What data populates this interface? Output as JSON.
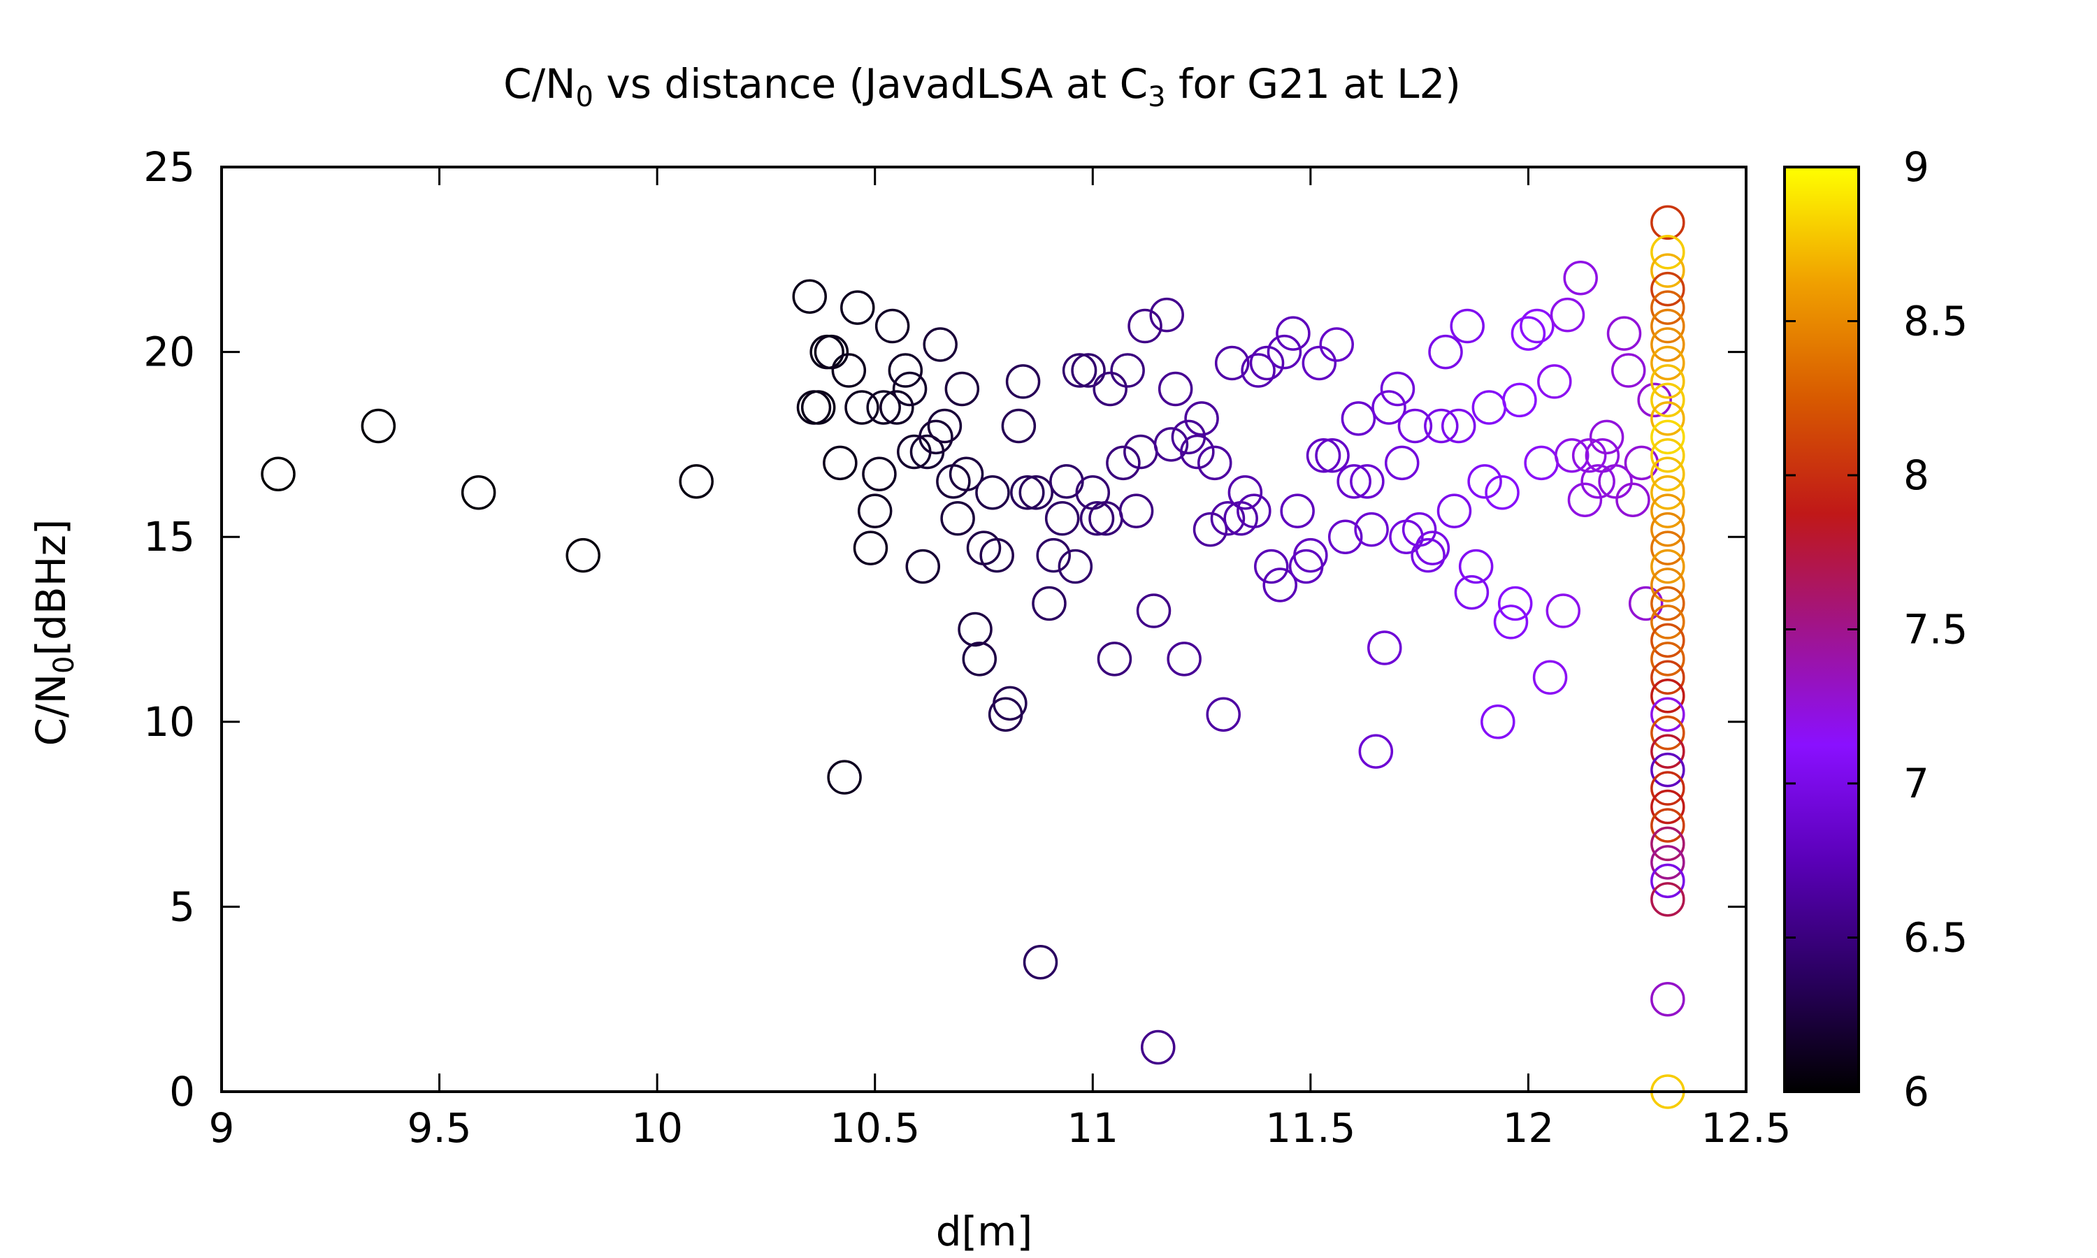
{
  "chart_data": {
    "type": "scatter",
    "title": {
      "prefix": "C/N",
      "sub1": "0",
      "middle": " vs distance (JavadLSA at C",
      "sub2": "3",
      "suffix": " for G21 at L2)"
    },
    "xlabel": "d[m]",
    "ylabel": {
      "prefix": "C/N",
      "sub": "0",
      "suffix": "[dBHz]"
    },
    "xlim": [
      9,
      12.5
    ],
    "ylim": [
      0,
      25
    ],
    "xticks": [
      9,
      9.5,
      10,
      10.5,
      11,
      11.5,
      12,
      12.5
    ],
    "xtick_labels": [
      "9",
      "9.5",
      "10",
      "10.5",
      "11",
      "11.5",
      "12",
      "12.5"
    ],
    "yticks": [
      0,
      5,
      10,
      15,
      20,
      25
    ],
    "ytick_labels": [
      "0",
      "5",
      "10",
      "15",
      "20",
      "25"
    ],
    "colorbar": {
      "range": [
        6,
        9
      ],
      "ticks": [
        6,
        6.5,
        7,
        7.5,
        8,
        8.5,
        9
      ],
      "tick_labels": [
        "6",
        "6.5",
        "7",
        "7.5",
        "8",
        "8.5",
        "9"
      ],
      "palette": [
        "#000000",
        "#2a0060",
        "#5a00b8",
        "#8a10ff",
        "#a0148c",
        "#c01818",
        "#d85a00",
        "#f0a000",
        "#ffff00"
      ]
    },
    "marker": "open-circle",
    "grid": false,
    "points": [
      [
        9.13,
        16.7,
        6.02
      ],
      [
        9.36,
        18.0,
        6.03
      ],
      [
        9.59,
        16.2,
        6.04
      ],
      [
        9.83,
        14.5,
        6.05
      ],
      [
        10.09,
        16.5,
        6.07
      ],
      [
        10.35,
        21.5,
        6.1
      ],
      [
        10.36,
        18.5,
        6.1
      ],
      [
        10.37,
        18.5,
        6.1
      ],
      [
        10.39,
        20.0,
        6.1
      ],
      [
        10.4,
        20.0,
        6.11
      ],
      [
        10.42,
        17.0,
        6.11
      ],
      [
        10.43,
        8.5,
        6.12
      ],
      [
        10.44,
        19.5,
        6.12
      ],
      [
        10.46,
        21.2,
        6.12
      ],
      [
        10.47,
        18.5,
        6.13
      ],
      [
        10.49,
        14.7,
        6.13
      ],
      [
        10.5,
        15.7,
        6.14
      ],
      [
        10.51,
        16.7,
        6.14
      ],
      [
        10.52,
        18.5,
        6.15
      ],
      [
        10.54,
        20.7,
        6.15
      ],
      [
        10.55,
        18.5,
        6.16
      ],
      [
        10.57,
        19.5,
        6.16
      ],
      [
        10.58,
        19.0,
        6.17
      ],
      [
        10.59,
        17.3,
        6.18
      ],
      [
        10.61,
        14.2,
        6.2
      ],
      [
        10.62,
        17.3,
        6.2
      ],
      [
        10.64,
        17.7,
        6.21
      ],
      [
        10.65,
        20.2,
        6.22
      ],
      [
        10.66,
        18.0,
        6.22
      ],
      [
        10.68,
        16.5,
        6.23
      ],
      [
        10.69,
        15.5,
        6.24
      ],
      [
        10.7,
        19.0,
        6.24
      ],
      [
        10.71,
        16.7,
        6.25
      ],
      [
        10.73,
        12.5,
        6.26
      ],
      [
        10.74,
        11.7,
        6.27
      ],
      [
        10.75,
        14.7,
        6.28
      ],
      [
        10.77,
        16.2,
        6.29
      ],
      [
        10.78,
        14.5,
        6.3
      ],
      [
        10.8,
        10.2,
        6.31
      ],
      [
        10.81,
        10.5,
        6.32
      ],
      [
        10.83,
        18.0,
        6.33
      ],
      [
        10.84,
        19.2,
        6.34
      ],
      [
        10.85,
        16.2,
        6.35
      ],
      [
        10.87,
        16.2,
        6.36
      ],
      [
        10.88,
        3.5,
        6.37
      ],
      [
        10.9,
        13.2,
        6.38
      ],
      [
        10.91,
        14.5,
        6.39
      ],
      [
        10.93,
        15.5,
        6.4
      ],
      [
        10.94,
        16.5,
        6.41
      ],
      [
        10.96,
        14.2,
        6.42
      ],
      [
        10.97,
        19.5,
        6.43
      ],
      [
        10.99,
        19.5,
        6.44
      ],
      [
        11.0,
        16.2,
        6.45
      ],
      [
        11.01,
        15.5,
        6.46
      ],
      [
        11.03,
        15.5,
        6.47
      ],
      [
        11.04,
        19.0,
        6.48
      ],
      [
        11.05,
        11.7,
        6.49
      ],
      [
        11.07,
        17.0,
        6.5
      ],
      [
        11.08,
        19.5,
        6.51
      ],
      [
        11.1,
        15.7,
        6.52
      ],
      [
        11.11,
        17.3,
        6.53
      ],
      [
        11.12,
        20.7,
        6.54
      ],
      [
        11.14,
        13.0,
        6.55
      ],
      [
        11.15,
        1.2,
        6.56
      ],
      [
        11.17,
        21.0,
        6.57
      ],
      [
        11.18,
        17.5,
        6.58
      ],
      [
        11.19,
        19.0,
        6.59
      ],
      [
        11.21,
        11.7,
        6.6
      ],
      [
        11.22,
        17.7,
        6.61
      ],
      [
        11.24,
        17.3,
        6.62
      ],
      [
        11.25,
        18.2,
        6.63
      ],
      [
        11.27,
        15.2,
        6.64
      ],
      [
        11.28,
        17.0,
        6.65
      ],
      [
        11.3,
        10.2,
        6.66
      ],
      [
        11.31,
        15.5,
        6.67
      ],
      [
        11.32,
        19.7,
        6.68
      ],
      [
        11.34,
        15.5,
        6.69
      ],
      [
        11.35,
        16.2,
        6.7
      ],
      [
        11.37,
        15.7,
        6.71
      ],
      [
        11.38,
        19.5,
        6.72
      ],
      [
        11.4,
        19.7,
        6.73
      ],
      [
        11.41,
        14.2,
        6.74
      ],
      [
        11.43,
        13.7,
        6.75
      ],
      [
        11.44,
        20.0,
        6.76
      ],
      [
        11.46,
        20.5,
        6.77
      ],
      [
        11.47,
        15.7,
        6.78
      ],
      [
        11.49,
        14.2,
        6.79
      ],
      [
        11.5,
        14.5,
        6.8
      ],
      [
        11.52,
        19.7,
        6.81
      ],
      [
        11.53,
        17.2,
        6.82
      ],
      [
        11.55,
        17.2,
        6.83
      ],
      [
        11.56,
        20.2,
        6.84
      ],
      [
        11.58,
        15.0,
        6.85
      ],
      [
        11.6,
        16.5,
        6.86
      ],
      [
        11.61,
        18.2,
        6.87
      ],
      [
        11.63,
        16.5,
        6.88
      ],
      [
        11.64,
        15.2,
        6.89
      ],
      [
        11.65,
        9.2,
        6.9
      ],
      [
        11.67,
        12.0,
        6.91
      ],
      [
        11.68,
        18.5,
        6.92
      ],
      [
        11.7,
        19.0,
        6.93
      ],
      [
        11.71,
        17.0,
        6.94
      ],
      [
        11.72,
        15.0,
        6.95
      ],
      [
        11.74,
        18.0,
        6.96
      ],
      [
        11.75,
        15.2,
        6.97
      ],
      [
        11.77,
        14.5,
        6.98
      ],
      [
        11.78,
        14.7,
        6.99
      ],
      [
        11.8,
        18.0,
        7.0
      ],
      [
        11.81,
        20.0,
        7.01
      ],
      [
        11.83,
        15.7,
        7.02
      ],
      [
        11.84,
        18.0,
        7.03
      ],
      [
        11.86,
        20.7,
        7.04
      ],
      [
        11.87,
        13.5,
        7.05
      ],
      [
        11.88,
        14.2,
        7.06
      ],
      [
        11.9,
        16.5,
        7.07
      ],
      [
        11.91,
        18.5,
        7.08
      ],
      [
        11.93,
        10.0,
        7.09
      ],
      [
        11.94,
        16.2,
        7.1
      ],
      [
        11.96,
        12.7,
        7.1
      ],
      [
        11.97,
        13.2,
        7.11
      ],
      [
        11.98,
        18.7,
        7.12
      ],
      [
        12.0,
        20.5,
        7.13
      ],
      [
        12.02,
        20.7,
        7.14
      ],
      [
        12.03,
        17.0,
        7.15
      ],
      [
        12.05,
        11.2,
        7.16
      ],
      [
        12.06,
        19.2,
        7.17
      ],
      [
        12.08,
        13.0,
        7.18
      ],
      [
        12.09,
        21.0,
        7.19
      ],
      [
        12.1,
        17.2,
        7.2
      ],
      [
        12.12,
        22.0,
        7.21
      ],
      [
        12.13,
        16.0,
        7.22
      ],
      [
        12.14,
        17.2,
        7.22
      ],
      [
        12.16,
        16.5,
        7.23
      ],
      [
        12.17,
        17.2,
        7.23
      ],
      [
        12.18,
        17.7,
        7.24
      ],
      [
        12.2,
        16.5,
        7.24
      ],
      [
        12.22,
        20.5,
        7.25
      ],
      [
        12.23,
        19.5,
        7.25
      ],
      [
        12.24,
        16.0,
        7.26
      ],
      [
        12.26,
        17.0,
        7.26
      ],
      [
        12.27,
        13.2,
        7.27
      ],
      [
        12.29,
        18.7,
        7.27
      ],
      [
        12.32,
        23.5,
        8.05
      ],
      [
        12.32,
        22.7,
        8.8
      ],
      [
        12.32,
        22.2,
        8.7
      ],
      [
        12.32,
        21.7,
        8.1
      ],
      [
        12.32,
        21.2,
        8.3
      ],
      [
        12.32,
        20.7,
        8.45
      ],
      [
        12.32,
        20.2,
        8.55
      ],
      [
        12.32,
        19.7,
        8.65
      ],
      [
        12.32,
        19.2,
        8.75
      ],
      [
        12.32,
        18.7,
        8.8
      ],
      [
        12.32,
        18.2,
        8.7
      ],
      [
        12.32,
        17.7,
        8.85
      ],
      [
        12.32,
        17.2,
        8.8
      ],
      [
        12.32,
        16.7,
        8.75
      ],
      [
        12.32,
        16.2,
        8.7
      ],
      [
        12.32,
        15.7,
        8.6
      ],
      [
        12.32,
        15.2,
        8.5
      ],
      [
        12.32,
        14.7,
        8.4
      ],
      [
        12.32,
        14.2,
        8.6
      ],
      [
        12.32,
        13.7,
        8.5
      ],
      [
        12.32,
        13.2,
        8.3
      ],
      [
        12.32,
        12.7,
        8.4
      ],
      [
        12.32,
        12.2,
        8.2
      ],
      [
        12.32,
        11.7,
        8.3
      ],
      [
        12.32,
        11.2,
        8.1
      ],
      [
        12.32,
        10.7,
        7.9
      ],
      [
        12.32,
        10.2,
        7.2
      ],
      [
        12.32,
        9.7,
        8.2
      ],
      [
        12.32,
        9.2,
        7.8
      ],
      [
        12.32,
        8.7,
        6.8
      ],
      [
        12.32,
        8.2,
        8.0
      ],
      [
        12.32,
        7.7,
        7.9
      ],
      [
        12.32,
        7.2,
        8.1
      ],
      [
        12.32,
        6.7,
        7.6
      ],
      [
        12.32,
        6.2,
        7.5
      ],
      [
        12.32,
        5.7,
        7.0
      ],
      [
        12.32,
        5.2,
        7.7
      ],
      [
        12.32,
        2.5,
        7.3
      ],
      [
        12.32,
        0.0,
        8.8
      ]
    ]
  }
}
